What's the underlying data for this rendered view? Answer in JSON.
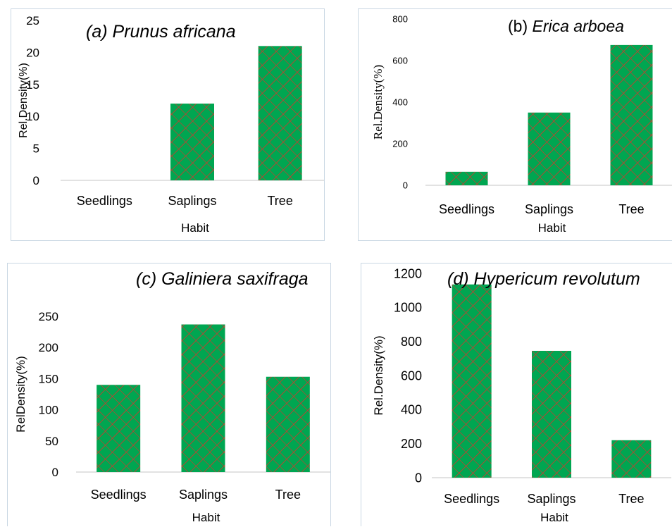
{
  "chart_data": [
    {
      "type": "bar",
      "title_label": "(a)",
      "title_species": "Prunus africana",
      "categories": [
        "Seedlings",
        "Saplings",
        "Tree"
      ],
      "values": [
        0,
        12,
        21
      ],
      "xlabel": "Habit",
      "ylabel": "Rel.Density(%)",
      "ylim": [
        0,
        25
      ],
      "yticks": [
        "0",
        "5",
        "10",
        "15",
        "20",
        "25"
      ]
    },
    {
      "type": "bar",
      "title_label": "(b)",
      "title_species": "Erica arboea",
      "categories": [
        "Seedlings",
        "Saplings",
        "Tree"
      ],
      "values": [
        65,
        350,
        675
      ],
      "xlabel": "Habit",
      "ylabel": "Rel.Density(%)",
      "ylim": [
        0,
        800
      ],
      "yticks": [
        "0",
        "200",
        "400",
        "600",
        "800"
      ]
    },
    {
      "type": "bar",
      "title_label": "(c)",
      "title_species": "Galiniera saxifraga",
      "categories": [
        "Seedlings",
        "Saplings",
        "Tree"
      ],
      "values": [
        140,
        237,
        153
      ],
      "xlabel": "Habit",
      "ylabel": "RelDensity(%)",
      "ylim": [
        0,
        250
      ],
      "yticks": [
        "0",
        "50",
        "100",
        "150",
        "200",
        "250"
      ]
    },
    {
      "type": "bar",
      "title_label": "(d)",
      "title_species": "Hypericum revolutum",
      "categories": [
        "Seedlings",
        "Saplings",
        "Tree"
      ],
      "values": [
        1135,
        745,
        220
      ],
      "xlabel": "Habit",
      "ylabel": "Rel.Density(%)",
      "ylim": [
        0,
        1200
      ],
      "yticks": [
        "0",
        "200",
        "400",
        "600",
        "800",
        "1000",
        "1200"
      ]
    }
  ],
  "colors": {
    "bar_fill": "#00a651",
    "bar_hatch": "#d9342b",
    "axis": "#d9d9d9",
    "panel_border": "#c9d7e3"
  }
}
